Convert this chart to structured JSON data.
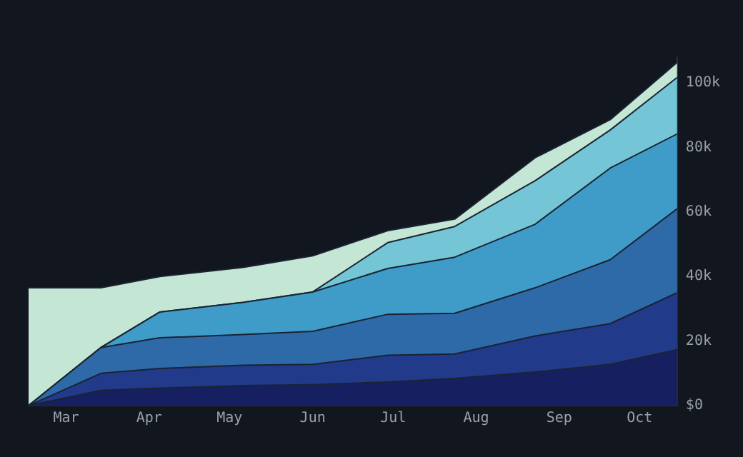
{
  "chart_data": {
    "type": "area",
    "stacked": true,
    "x": [
      "--02-15",
      "--03-14",
      "--04-05",
      "--05-06",
      "--06-01",
      "--06-29",
      "--07-24",
      "--08-23",
      "--09-20",
      "--10-15"
    ],
    "series": [
      {
        "color": "#162060",
        "values": [
          0,
          4700,
          5400,
          6200,
          6500,
          7300,
          8400,
          10400,
          12800,
          17300
        ]
      },
      {
        "color": "#213a8a",
        "values": [
          0,
          5300,
          6100,
          6300,
          6300,
          8300,
          7600,
          11200,
          12600,
          17700
        ]
      },
      {
        "color": "#2f6aa8",
        "values": [
          0,
          8000,
          9500,
          9500,
          10200,
          12700,
          12600,
          14900,
          19800,
          26000
        ]
      },
      {
        "color": "#3f9bc8",
        "values": [
          0,
          0,
          8000,
          10000,
          12200,
          14200,
          17400,
          19700,
          28400,
          23200
        ]
      },
      {
        "color": "#74c6d6",
        "values": [
          0,
          0,
          0,
          0,
          0,
          8000,
          9500,
          13500,
          11800,
          17500
        ]
      },
      {
        "color": "#c4e6d4",
        "values": [
          36500,
          18500,
          11000,
          10800,
          11200,
          3700,
          2300,
          7100,
          3200,
          4700
        ]
      }
    ],
    "xlim": [
      "--02-15",
      "--10-15"
    ],
    "xticks": [
      {
        "value": "--03-01",
        "label": "Mar"
      },
      {
        "value": "--04-01",
        "label": "Apr"
      },
      {
        "value": "--05-01",
        "label": "May"
      },
      {
        "value": "--06-01",
        "label": "Jun"
      },
      {
        "value": "--07-01",
        "label": "Jul"
      },
      {
        "value": "--08-01",
        "label": "Aug"
      },
      {
        "value": "--09-01",
        "label": "Sep"
      },
      {
        "value": "--10-01",
        "label": "Oct"
      }
    ],
    "ylim": [
      0,
      108000
    ],
    "yticks": [
      {
        "value": 0,
        "label": "$0"
      },
      {
        "value": 20000,
        "label": "20k"
      },
      {
        "value": 40000,
        "label": "40k"
      },
      {
        "value": 60000,
        "label": "60k"
      },
      {
        "value": 80000,
        "label": "80k"
      },
      {
        "value": 100000,
        "label": "100k"
      }
    ],
    "grid": false,
    "legend": false,
    "marker": "none"
  }
}
